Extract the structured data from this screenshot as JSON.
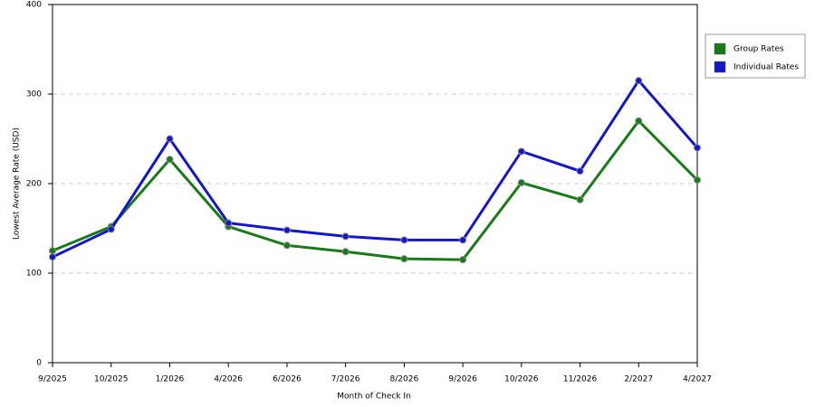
{
  "chart_data": {
    "type": "line",
    "x_label": "Month of Check In",
    "y_label": "Lowest Average Rate (USD)",
    "categories": [
      "9/2025",
      "10/2025",
      "1/2026",
      "4/2026",
      "6/2026",
      "7/2026",
      "8/2026",
      "9/2026",
      "10/2026",
      "11/2026",
      "2/2027",
      "4/2027"
    ],
    "series": [
      {
        "name": "Group Rates",
        "color": "#1a7a1a",
        "values": [
          125,
          152,
          227,
          152,
          131,
          124,
          116,
          115,
          201,
          182,
          270,
          204
        ]
      },
      {
        "name": "Individual Rates",
        "color": "#1515cc",
        "values": [
          118,
          149,
          250,
          156,
          148,
          141,
          137,
          137,
          236,
          214,
          315,
          240
        ]
      }
    ],
    "ylim": [
      0,
      400
    ],
    "yticks": [
      0,
      100,
      200,
      300,
      400
    ],
    "grid": true
  }
}
